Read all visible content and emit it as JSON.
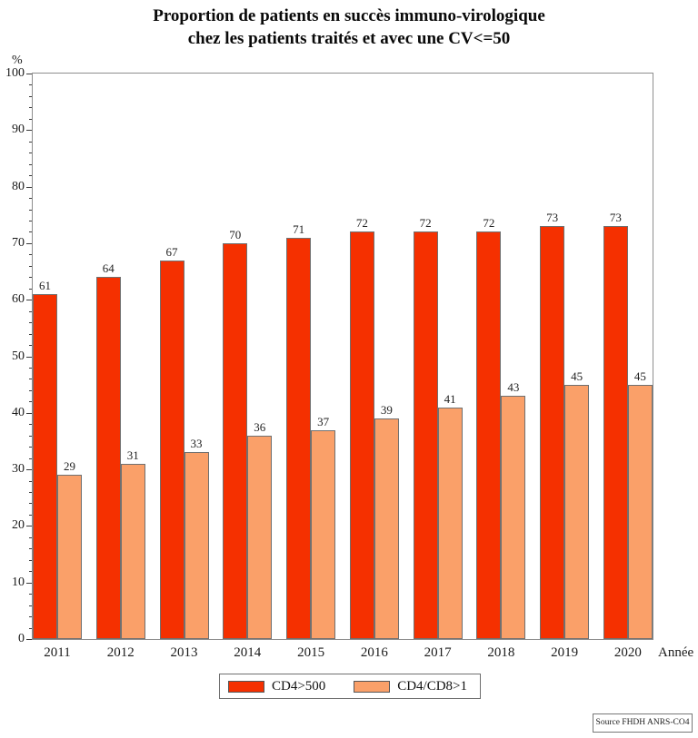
{
  "title": {
    "line1": "Proportion de patients en succès immuno-virologique",
    "line2": "chez les patients traités et avec une CV<=50"
  },
  "axes": {
    "y_unit_label": "%",
    "x_axis_label": "Année"
  },
  "legend": {
    "items": [
      {
        "label": "CD4>500",
        "color": "#F53000"
      },
      {
        "label": "CD4/CD8>1",
        "color": "#FAA069"
      }
    ]
  },
  "source_box": {
    "text": "Source FHDH ANRS-CO4"
  },
  "chart_data": {
    "type": "bar",
    "title": "Proportion de patients en succès immuno-virologique chez les patients traités et avec une CV<=50",
    "categories": [
      "2011",
      "2012",
      "2013",
      "2014",
      "2015",
      "2016",
      "2017",
      "2018",
      "2019",
      "2020"
    ],
    "series": [
      {
        "name": "CD4>500",
        "color": "#F53000",
        "values": [
          61,
          64,
          67,
          70,
          71,
          72,
          72,
          72,
          73,
          73
        ]
      },
      {
        "name": "CD4/CD8>1",
        "color": "#FAA069",
        "values": [
          29,
          31,
          33,
          36,
          37,
          39,
          41,
          43,
          45,
          45
        ]
      }
    ],
    "xlabel": "Année",
    "ylabel": "%",
    "ylim": [
      0,
      100
    ],
    "y_major_step": 10,
    "y_minor_step": 2,
    "grid": false,
    "legend_position": "bottom",
    "value_labels": true
  }
}
